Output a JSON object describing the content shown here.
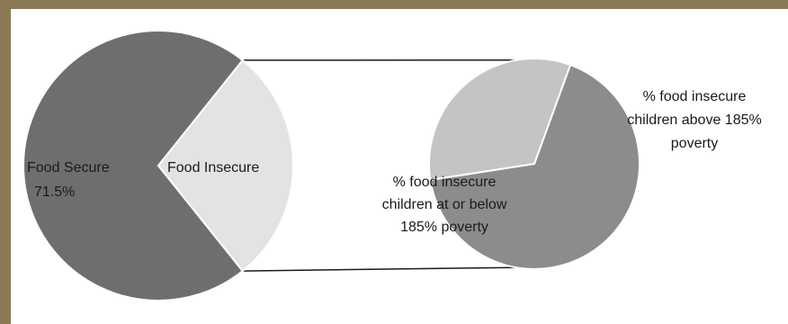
{
  "chart_data": {
    "type": "pie",
    "title": "",
    "main_pie": {
      "slices": [
        {
          "label": "Food Secure",
          "value": 71.5,
          "value_label": "71.5%",
          "color": "#6e6e6e"
        },
        {
          "label": "Food Insecure",
          "value": 28.5,
          "color": "#e3e3e3"
        }
      ]
    },
    "breakdown_pie": {
      "of": "Food Insecure",
      "slices": [
        {
          "label": "% food insecure children at or below 185% poverty",
          "value": 67,
          "color": "#8c8c8c"
        },
        {
          "label": "% food insecure children above 185% poverty",
          "value": 33,
          "color": "#c4c4c4"
        }
      ]
    },
    "labels": {
      "food_secure": "Food Secure",
      "food_secure_pct": "71.5%",
      "food_insecure": "Food Insecure",
      "below_line1": "% food insecure",
      "below_line2": "children at or below",
      "below_line3": "185% poverty",
      "above_line1": "% food insecure",
      "above_line2": "children above 185%",
      "above_line3": "poverty"
    }
  },
  "colors": {
    "frame": "#8a7a55",
    "background": "#ffffff",
    "outline": "#ffffff",
    "connector": "#1a1a1a"
  }
}
